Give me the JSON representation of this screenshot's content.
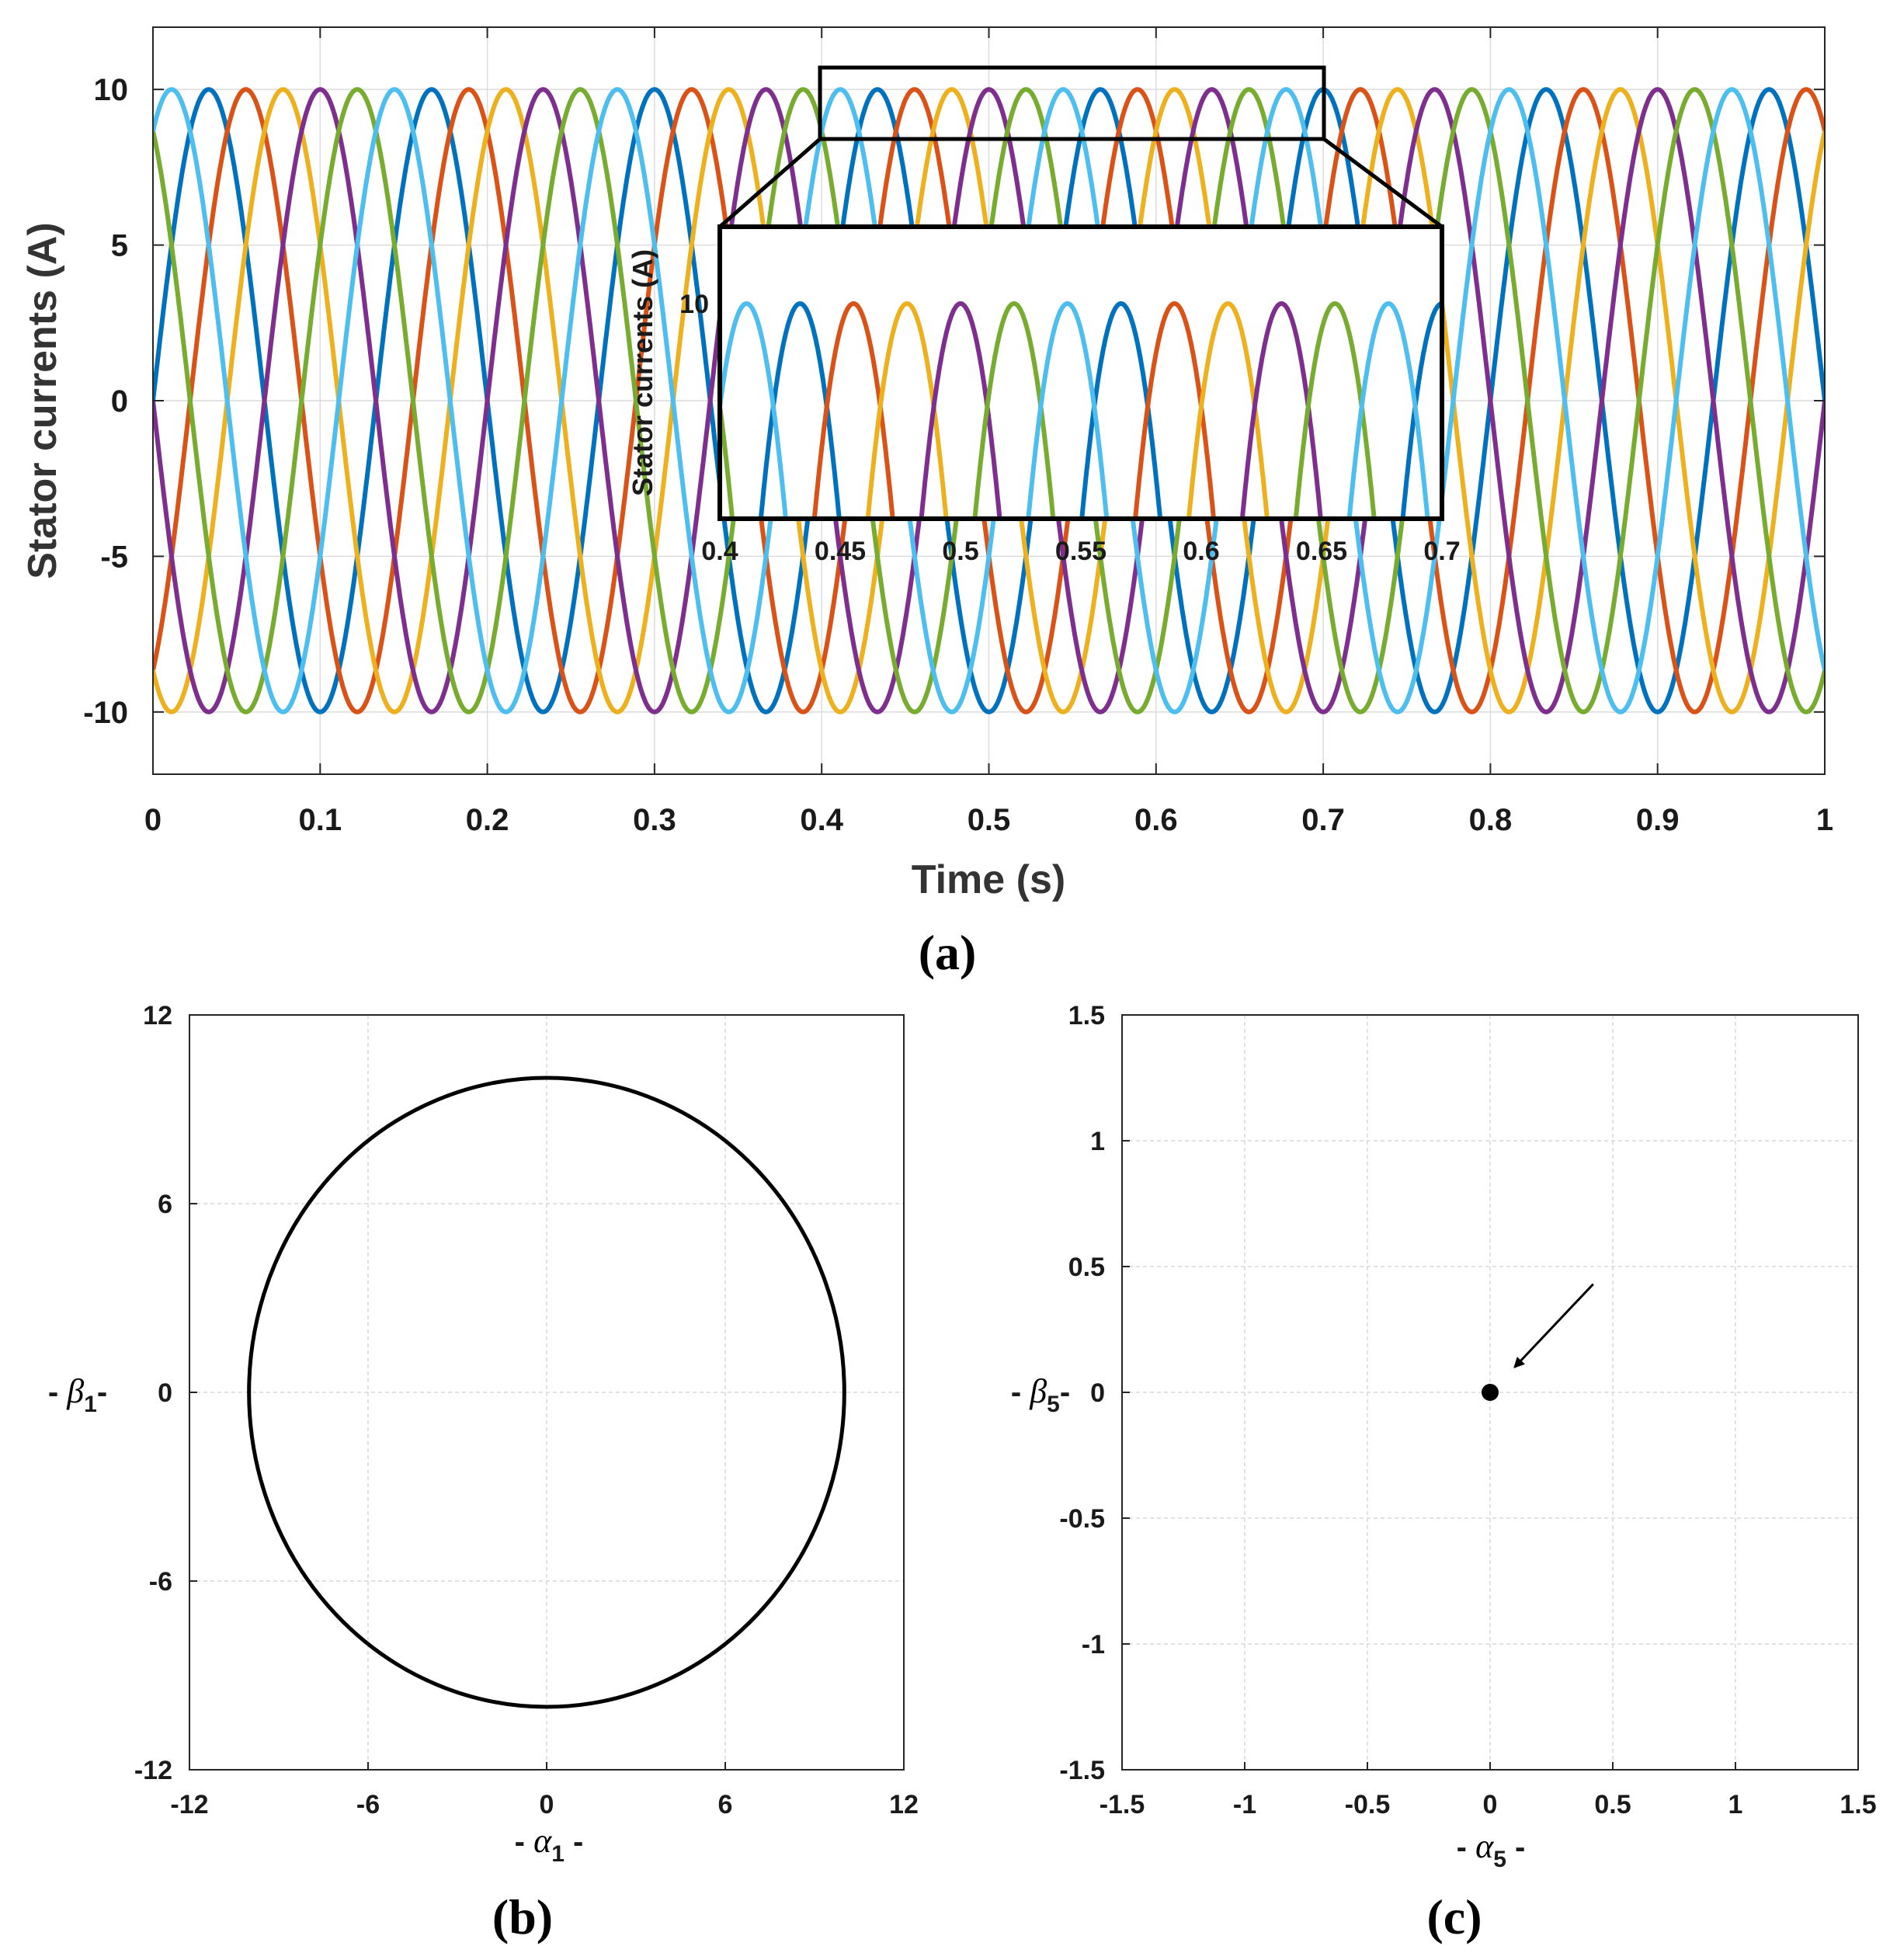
{
  "chart_data": [
    {
      "panel_label": "(a)",
      "type": "line",
      "xlabel": "Time (s)",
      "ylabel": "Stator currents (A)",
      "xlim": [
        0,
        1
      ],
      "ylim": [
        -12,
        12
      ],
      "xticks": [
        "0",
        "0.1",
        "0.2",
        "0.3",
        "0.4",
        "0.5",
        "0.6",
        "0.7",
        "0.8",
        "0.9",
        "1"
      ],
      "yticks": [
        "10",
        "5",
        "0",
        "-5",
        "-10"
      ],
      "grid": true,
      "waveform": {
        "amplitude": 10,
        "frequency_hz": 7.5,
        "phase_count": 6
      },
      "series": [
        {
          "phase_deg": 0,
          "color": "#0072BD"
        },
        {
          "phase_deg": 60,
          "color": "#D95319"
        },
        {
          "phase_deg": 120,
          "color": "#EDB120"
        },
        {
          "phase_deg": 180,
          "color": "#7E2F8E"
        },
        {
          "phase_deg": 240,
          "color": "#77AC30"
        },
        {
          "phase_deg": 300,
          "color": "#4DBEEE"
        }
      ],
      "inset": {
        "ylabel": "Stator currents (A)",
        "xlim": [
          0.4,
          0.7
        ],
        "ylim": [
          7.2,
          11
        ],
        "xticks": [
          "0.4",
          "0.45",
          "0.5",
          "0.55",
          "0.6",
          "0.65",
          "0.7"
        ],
        "yticks": [
          "10"
        ]
      }
    },
    {
      "panel_label": "(b)",
      "type": "line",
      "xlabel_prefix": "- ",
      "xlabel_symbol": "α",
      "xlabel_sub": "1",
      "xlabel_suffix": " -",
      "ylabel_prefix": "- ",
      "ylabel_symbol": "β",
      "ylabel_sub": "1",
      "ylabel_suffix": "-",
      "xlim": [
        -12,
        12
      ],
      "ylim": [
        -12,
        12
      ],
      "xticks": [
        "-12",
        "-6",
        "0",
        "6",
        "12"
      ],
      "yticks": [
        "12",
        "6",
        "0",
        "-6",
        "-12"
      ],
      "grid": true,
      "trajectory": {
        "shape": "circle",
        "center": [
          0,
          0
        ],
        "radius": 10,
        "color": "#000000"
      }
    },
    {
      "panel_label": "(c)",
      "type": "scatter",
      "xlabel_prefix": "- ",
      "xlabel_symbol": "α",
      "xlabel_sub": "5",
      "xlabel_suffix": " -",
      "ylabel_prefix": "- ",
      "ylabel_symbol": "β",
      "ylabel_sub": "5",
      "ylabel_suffix": "-",
      "xlim": [
        -1.5,
        1.5
      ],
      "ylim": [
        -1.5,
        1.5
      ],
      "xticks": [
        "-1.5",
        "-1",
        "-0.5",
        "0",
        "0.5",
        "1",
        "1.5"
      ],
      "yticks": [
        "1.5",
        "1",
        "0.5",
        "0",
        "-0.5",
        "-1",
        "-1.5"
      ],
      "grid": true,
      "points": [
        {
          "x": 0,
          "y": 0,
          "color": "#000000"
        }
      ],
      "annotation": {
        "type": "arrow",
        "from": [
          0.42,
          0.43
        ],
        "to": [
          0.1,
          0.1
        ]
      }
    }
  ]
}
